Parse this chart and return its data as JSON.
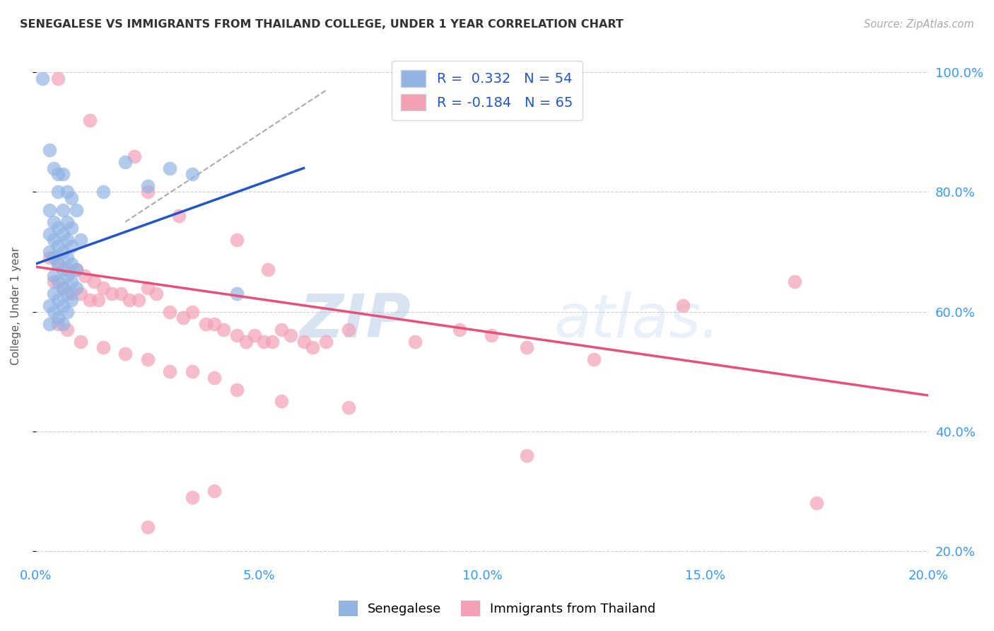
{
  "title": "SENEGALESE VS IMMIGRANTS FROM THAILAND COLLEGE, UNDER 1 YEAR CORRELATION CHART",
  "source": "Source: ZipAtlas.com",
  "xlabel_ticks": [
    "0.0%",
    "5.0%",
    "10.0%",
    "15.0%",
    "20.0%"
  ],
  "xlabel_vals": [
    0.0,
    5.0,
    10.0,
    15.0,
    20.0
  ],
  "ylabel": "College, Under 1 year",
  "ylabel_ticks_right": [
    "100.0%",
    "80.0%",
    "60.0%",
    "40.0%",
    "20.0%"
  ],
  "ylabel_vals": [
    100.0,
    80.0,
    60.0,
    40.0,
    20.0
  ],
  "xlim": [
    0.0,
    20.0
  ],
  "ylim": [
    18.0,
    104.0
  ],
  "blue_color": "#92b4e3",
  "pink_color": "#f4a0b5",
  "trend_blue": "#2255cc",
  "trend_pink": "#e8507a",
  "dashed_color": "#aaaaaa",
  "watermark_zip": "ZIP",
  "watermark_atlas": "atlas.",
  "blue_scatter": [
    [
      0.15,
      99
    ],
    [
      0.3,
      87
    ],
    [
      0.4,
      84
    ],
    [
      0.5,
      83
    ],
    [
      0.6,
      83
    ],
    [
      0.5,
      80
    ],
    [
      0.7,
      80
    ],
    [
      0.8,
      79
    ],
    [
      0.3,
      77
    ],
    [
      0.6,
      77
    ],
    [
      0.9,
      77
    ],
    [
      0.4,
      75
    ],
    [
      0.7,
      75
    ],
    [
      0.5,
      74
    ],
    [
      0.8,
      74
    ],
    [
      0.3,
      73
    ],
    [
      0.6,
      73
    ],
    [
      0.4,
      72
    ],
    [
      0.7,
      72
    ],
    [
      1.0,
      72
    ],
    [
      0.5,
      71
    ],
    [
      0.8,
      71
    ],
    [
      0.3,
      70
    ],
    [
      0.6,
      70
    ],
    [
      0.4,
      69
    ],
    [
      0.7,
      69
    ],
    [
      0.5,
      68
    ],
    [
      0.8,
      68
    ],
    [
      0.6,
      67
    ],
    [
      0.9,
      67
    ],
    [
      0.4,
      66
    ],
    [
      0.7,
      66
    ],
    [
      0.5,
      65
    ],
    [
      0.8,
      65
    ],
    [
      0.6,
      64
    ],
    [
      0.9,
      64
    ],
    [
      0.4,
      63
    ],
    [
      0.7,
      63
    ],
    [
      0.5,
      62
    ],
    [
      0.8,
      62
    ],
    [
      0.3,
      61
    ],
    [
      0.6,
      61
    ],
    [
      0.4,
      60
    ],
    [
      0.7,
      60
    ],
    [
      0.5,
      59
    ],
    [
      0.3,
      58
    ],
    [
      0.6,
      58
    ],
    [
      1.5,
      80
    ],
    [
      2.0,
      85
    ],
    [
      2.5,
      81
    ],
    [
      3.0,
      84
    ],
    [
      3.5,
      83
    ],
    [
      4.5,
      63
    ]
  ],
  "pink_scatter": [
    [
      0.5,
      99
    ],
    [
      1.2,
      92
    ],
    [
      2.2,
      86
    ],
    [
      2.5,
      80
    ],
    [
      3.2,
      76
    ],
    [
      4.5,
      72
    ],
    [
      5.2,
      67
    ],
    [
      0.3,
      69
    ],
    [
      0.5,
      68
    ],
    [
      0.7,
      67
    ],
    [
      0.9,
      67
    ],
    [
      1.1,
      66
    ],
    [
      1.3,
      65
    ],
    [
      1.5,
      64
    ],
    [
      1.7,
      63
    ],
    [
      1.9,
      63
    ],
    [
      2.1,
      62
    ],
    [
      2.3,
      62
    ],
    [
      2.5,
      64
    ],
    [
      2.7,
      63
    ],
    [
      3.0,
      60
    ],
    [
      3.3,
      59
    ],
    [
      3.5,
      60
    ],
    [
      3.8,
      58
    ],
    [
      4.0,
      58
    ],
    [
      4.2,
      57
    ],
    [
      4.5,
      56
    ],
    [
      4.7,
      55
    ],
    [
      4.9,
      56
    ],
    [
      5.1,
      55
    ],
    [
      5.3,
      55
    ],
    [
      5.5,
      57
    ],
    [
      5.7,
      56
    ],
    [
      6.0,
      55
    ],
    [
      6.2,
      54
    ],
    [
      6.5,
      55
    ],
    [
      7.0,
      57
    ],
    [
      8.5,
      55
    ],
    [
      9.5,
      57
    ],
    [
      10.2,
      56
    ],
    [
      11.0,
      54
    ],
    [
      12.5,
      52
    ],
    [
      14.5,
      61
    ],
    [
      17.0,
      65
    ],
    [
      0.4,
      65
    ],
    [
      0.6,
      64
    ],
    [
      0.8,
      63
    ],
    [
      1.0,
      63
    ],
    [
      1.2,
      62
    ],
    [
      1.4,
      62
    ],
    [
      0.5,
      58
    ],
    [
      0.7,
      57
    ],
    [
      1.0,
      55
    ],
    [
      1.5,
      54
    ],
    [
      2.0,
      53
    ],
    [
      2.5,
      52
    ],
    [
      3.0,
      50
    ],
    [
      3.5,
      50
    ],
    [
      4.0,
      49
    ],
    [
      4.5,
      47
    ],
    [
      5.5,
      45
    ],
    [
      7.0,
      44
    ],
    [
      11.0,
      36
    ],
    [
      17.5,
      28
    ],
    [
      2.5,
      24
    ],
    [
      3.5,
      29
    ],
    [
      4.0,
      30
    ]
  ],
  "blue_trendline": [
    [
      0.0,
      68.0
    ],
    [
      6.0,
      84.0
    ]
  ],
  "pink_trendline": [
    [
      0.0,
      67.5
    ],
    [
      20.0,
      46.0
    ]
  ],
  "dashed_line": [
    [
      2.0,
      75.0
    ],
    [
      6.5,
      97.0
    ]
  ]
}
